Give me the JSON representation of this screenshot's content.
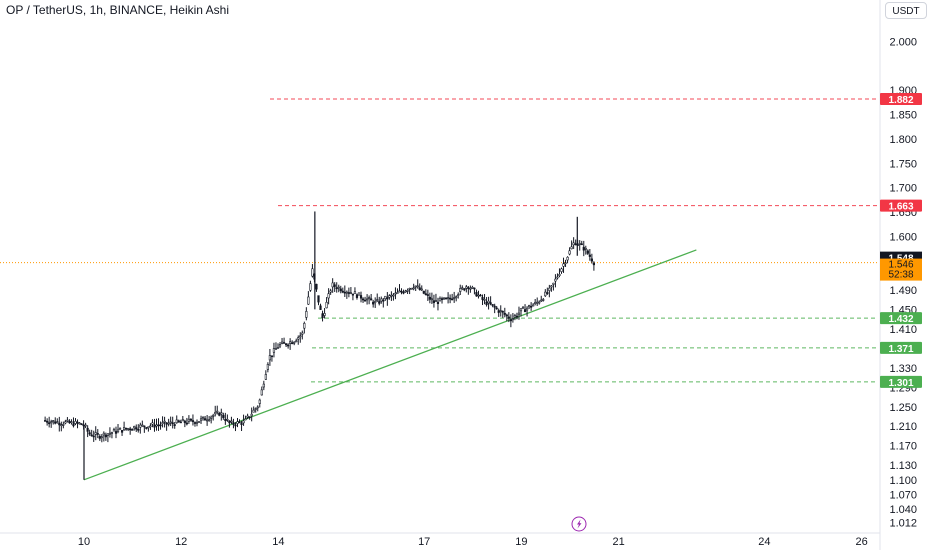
{
  "chart_data": {
    "type": "candlestick",
    "title": "OP / TetherUS, 1h, BINANCE, Heikin Ashi",
    "currency": "USDT",
    "y_ticks": [
      "2.000",
      "1.900",
      "1.850",
      "1.800",
      "1.750",
      "1.700",
      "1.650",
      "1.600",
      "1.490",
      "1.450",
      "1.410",
      "1.330",
      "1.290",
      "1.250",
      "1.210",
      "1.170",
      "1.130",
      "1.100",
      "1.070",
      "1.040",
      "1.012"
    ],
    "x_ticks": [
      "10",
      "12",
      "14",
      "17",
      "19",
      "21",
      "24",
      "26"
    ],
    "ylim": [
      1.0,
      2.02
    ],
    "grid": false,
    "horizontal_levels": [
      {
        "value": 1.882,
        "label": "1.882",
        "color": "#f23645",
        "style": "dashed"
      },
      {
        "value": 1.663,
        "label": "1.663",
        "color": "#f23645",
        "style": "dashed"
      },
      {
        "value": 1.432,
        "label": "1.432",
        "color": "#4caf50",
        "style": "dashed"
      },
      {
        "value": 1.371,
        "label": "1.371",
        "color": "#4caf50",
        "style": "dashed"
      },
      {
        "value": 1.301,
        "label": "1.301",
        "color": "#4caf50",
        "style": "dashed"
      }
    ],
    "current_price": {
      "value": 1.548,
      "label": "1.548",
      "color": "#131722"
    },
    "last_price": {
      "value": 1.546,
      "label": "1.546",
      "countdown": "52:38",
      "color": "#ff9800"
    },
    "trendline": {
      "color": "#4caf50",
      "points": [
        {
          "x": "10",
          "y": 1.1
        },
        {
          "x": "22.6",
          "y": 1.572
        }
      ]
    },
    "ohlc_waypoints": [
      {
        "x": "9.2",
        "y": 1.222
      },
      {
        "x": "9.5",
        "y": 1.218
      },
      {
        "x": "9.9",
        "y": 1.215
      },
      {
        "x": "10.0",
        "y": 1.213
      },
      {
        "x": "10.1",
        "y": 1.195
      },
      {
        "x": "10.3",
        "y": 1.19
      },
      {
        "x": "10.6",
        "y": 1.198
      },
      {
        "x": "11.0",
        "y": 1.208
      },
      {
        "x": "11.5",
        "y": 1.213
      },
      {
        "x": "12.0",
        "y": 1.218
      },
      {
        "x": "12.4",
        "y": 1.222
      },
      {
        "x": "12.8",
        "y": 1.238
      },
      {
        "x": "13.0",
        "y": 1.215
      },
      {
        "x": "13.3",
        "y": 1.218
      },
      {
        "x": "13.6",
        "y": 1.255
      },
      {
        "x": "13.8",
        "y": 1.35
      },
      {
        "x": "14.0",
        "y": 1.375
      },
      {
        "x": "14.3",
        "y": 1.385
      },
      {
        "x": "14.5",
        "y": 1.4
      },
      {
        "x": "14.7",
        "y": 1.53
      },
      {
        "x": "14.9",
        "y": 1.43
      },
      {
        "x": "15.1",
        "y": 1.5
      },
      {
        "x": "15.5",
        "y": 1.485
      },
      {
        "x": "16.0",
        "y": 1.463
      },
      {
        "x": "16.4",
        "y": 1.48
      },
      {
        "x": "16.8",
        "y": 1.5
      },
      {
        "x": "17.2",
        "y": 1.465
      },
      {
        "x": "17.5",
        "y": 1.47
      },
      {
        "x": "17.9",
        "y": 1.5
      },
      {
        "x": "18.2",
        "y": 1.47
      },
      {
        "x": "18.5",
        "y": 1.45
      },
      {
        "x": "18.8",
        "y": 1.43
      },
      {
        "x": "19.0",
        "y": 1.447
      },
      {
        "x": "19.3",
        "y": 1.462
      },
      {
        "x": "19.6",
        "y": 1.49
      },
      {
        "x": "19.9",
        "y": 1.55
      },
      {
        "x": "20.1",
        "y": 1.59
      },
      {
        "x": "20.3",
        "y": 1.575
      },
      {
        "x": "20.5",
        "y": 1.546
      }
    ]
  },
  "icons": {
    "flash": "lightning-icon"
  }
}
